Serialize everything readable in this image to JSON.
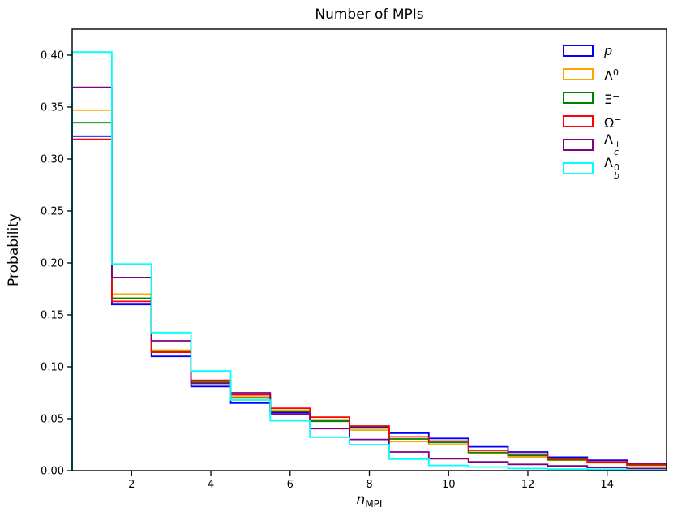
{
  "title": "Number of MPIs",
  "ylabel": "Probability",
  "xlabel": {
    "base": "n",
    "sub": "MPI"
  },
  "chart_data": {
    "type": "step-histogram",
    "title": "Number of MPIs",
    "xlabel": "n_MPI",
    "ylabel": "Probability",
    "bin_edges": [
      0.5,
      1.5,
      2.5,
      3.5,
      4.5,
      5.5,
      6.5,
      7.5,
      8.5,
      9.5,
      10.5,
      11.5,
      12.5,
      13.5,
      14.5,
      15.5
    ],
    "xlim": [
      0.5,
      15.5
    ],
    "ylim": [
      0,
      0.425
    ],
    "x_ticks": [
      2,
      4,
      6,
      8,
      10,
      12,
      14
    ],
    "x_tick_labels": [
      "2",
      "4",
      "6",
      "8",
      "10",
      "12",
      "14"
    ],
    "y_ticks": [
      0,
      0.05,
      0.1,
      0.15,
      0.2,
      0.25,
      0.3,
      0.35,
      0.4
    ],
    "y_tick_labels": [
      "0.00",
      "0.05",
      "0.10",
      "0.15",
      "0.20",
      "0.25",
      "0.30",
      "0.35",
      "0.40"
    ],
    "grid": false,
    "legend_position": "upper right",
    "series": [
      {
        "name": "p",
        "color": "#0000ff",
        "values": [
          0.322,
          0.16,
          0.11,
          0.081,
          0.065,
          0.056,
          0.048,
          0.042,
          0.036,
          0.031,
          0.023,
          0.018,
          0.013,
          0.01,
          0.007
        ]
      },
      {
        "name": "Λ⁰",
        "color": "#ffa500",
        "values": [
          0.347,
          0.17,
          0.116,
          0.086,
          0.071,
          0.058,
          0.049,
          0.039,
          0.028,
          0.025,
          0.017,
          0.013,
          0.01,
          0.0075,
          0.005
        ]
      },
      {
        "name": "Ξ⁻",
        "color": "#008000",
        "values": [
          0.335,
          0.166,
          0.115,
          0.085,
          0.07,
          0.057,
          0.0475,
          0.041,
          0.0305,
          0.027,
          0.0175,
          0.0145,
          0.0105,
          0.008,
          0.0055
        ]
      },
      {
        "name": "Ω⁻",
        "color": "#ff0000",
        "values": [
          0.319,
          0.163,
          0.114,
          0.087,
          0.073,
          0.06,
          0.0515,
          0.043,
          0.0325,
          0.0285,
          0.0195,
          0.016,
          0.0115,
          0.0085,
          0.006
        ]
      },
      {
        "name": "Λc⁺",
        "color": "#800080",
        "values": [
          0.369,
          0.186,
          0.125,
          0.084,
          0.075,
          0.0545,
          0.0405,
          0.03,
          0.018,
          0.0115,
          0.0085,
          0.006,
          0.0045,
          0.003,
          0.002
        ]
      },
      {
        "name": "Λb⁰",
        "color": "#00ffff",
        "values": [
          0.403,
          0.199,
          0.133,
          0.096,
          0.068,
          0.048,
          0.032,
          0.025,
          0.011,
          0.005,
          0.0035,
          0.002,
          0.0015,
          0.001,
          0.0005
        ]
      }
    ]
  },
  "legend": {
    "items": [
      {
        "base": "p",
        "italic": true,
        "sup": "",
        "sub": "",
        "color": "#0000ff"
      },
      {
        "base": "Λ",
        "italic": false,
        "sup": "0",
        "sub": "",
        "color": "#ffa500"
      },
      {
        "base": "Ξ",
        "italic": false,
        "sup": "−",
        "sub": "",
        "color": "#008000"
      },
      {
        "base": "Ω",
        "italic": false,
        "sup": "−",
        "sub": "",
        "color": "#ff0000"
      },
      {
        "base": "Λ",
        "italic": false,
        "sup": "+",
        "sub": "c",
        "color": "#800080"
      },
      {
        "base": "Λ",
        "italic": false,
        "sup": "0",
        "sub": "b",
        "color": "#00ffff"
      }
    ]
  }
}
